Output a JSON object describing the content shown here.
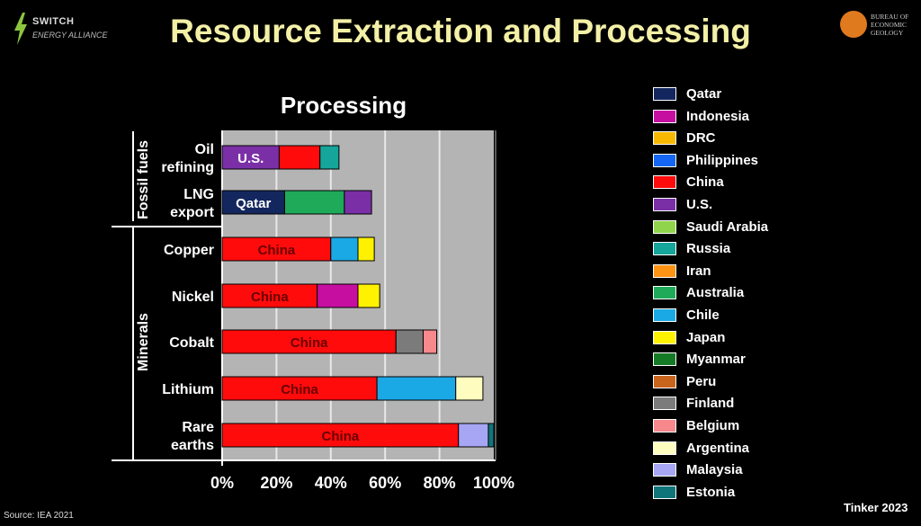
{
  "logo_left": {
    "line1": "SWITCH",
    "line2": "ENERGY ALLIANCE"
  },
  "logo_right": {
    "line1": "BUREAU OF",
    "line2": "ECONOMIC",
    "line3": "GEOLOGY"
  },
  "title": "Resource Extraction and Processing",
  "source": "Source: IEA 2021",
  "credit": "Tinker 2023",
  "chart_data": {
    "type": "bar",
    "orientation": "horizontal",
    "stacked": true,
    "title": "Processing",
    "xlim": [
      0,
      100
    ],
    "x_ticks": [
      "0%",
      "20%",
      "40%",
      "60%",
      "80%",
      "100%"
    ],
    "grid": true,
    "legend_position": "right",
    "groups": [
      {
        "label": "Fossil fuels",
        "rows": [
          0,
          1
        ]
      },
      {
        "label": "Minerals",
        "rows": [
          2,
          3,
          4,
          5,
          6
        ]
      }
    ],
    "categories": [
      [
        "Oil",
        "refining"
      ],
      [
        "LNG",
        "export"
      ],
      [
        "Copper"
      ],
      [
        "Nickel"
      ],
      [
        "Cobalt"
      ],
      [
        "Lithium"
      ],
      [
        "Rare",
        "earths"
      ]
    ],
    "bars": [
      [
        {
          "country": "U.S.",
          "value": 21,
          "label": "U.S."
        },
        {
          "country": "China",
          "value": 15
        },
        {
          "country": "Russia",
          "value": 7
        }
      ],
      [
        {
          "country": "Qatar",
          "value": 23,
          "label": "Qatar"
        },
        {
          "country": "Australia",
          "value": 22
        },
        {
          "country": "U.S.",
          "value": 10
        }
      ],
      [
        {
          "country": "China",
          "value": 40,
          "label": "China"
        },
        {
          "country": "Chile",
          "value": 10
        },
        {
          "country": "Japan",
          "value": 6
        }
      ],
      [
        {
          "country": "China",
          "value": 35,
          "label": "China"
        },
        {
          "country": "Indonesia",
          "value": 15
        },
        {
          "country": "Japan",
          "value": 8
        }
      ],
      [
        {
          "country": "China",
          "value": 64,
          "label": "China"
        },
        {
          "country": "Finland",
          "value": 10
        },
        {
          "country": "Belgium",
          "value": 5
        }
      ],
      [
        {
          "country": "China",
          "value": 57,
          "label": "China"
        },
        {
          "country": "Chile",
          "value": 29
        },
        {
          "country": "Argentina",
          "value": 10
        }
      ],
      [
        {
          "country": "China",
          "value": 87,
          "label": "China"
        },
        {
          "country": "Malaysia",
          "value": 11
        },
        {
          "country": "Estonia",
          "value": 2
        }
      ]
    ],
    "legend": [
      {
        "name": "Qatar",
        "color": "#13275e"
      },
      {
        "name": "Indonesia",
        "color": "#c60ea0"
      },
      {
        "name": "DRC",
        "color": "#f9b800"
      },
      {
        "name": "Philippines",
        "color": "#1466f3"
      },
      {
        "name": "China",
        "color": "#ff0b0b"
      },
      {
        "name": "U.S.",
        "color": "#7a2fa6"
      },
      {
        "name": "Saudi Arabia",
        "color": "#8fd44a"
      },
      {
        "name": "Russia",
        "color": "#15a59a"
      },
      {
        "name": "Iran",
        "color": "#ff9313"
      },
      {
        "name": "Australia",
        "color": "#1faa5a"
      },
      {
        "name": "Chile",
        "color": "#1ba9e6"
      },
      {
        "name": "Japan",
        "color": "#fff200"
      },
      {
        "name": "Myanmar",
        "color": "#157a25"
      },
      {
        "name": "Peru",
        "color": "#c9641c"
      },
      {
        "name": "Finland",
        "color": "#7b7b7b"
      },
      {
        "name": "Belgium",
        "color": "#f7888b"
      },
      {
        "name": "Argentina",
        "color": "#fffcc0"
      },
      {
        "name": "Malaysia",
        "color": "#a7a6f4"
      },
      {
        "name": "Estonia",
        "color": "#10757a"
      }
    ]
  }
}
